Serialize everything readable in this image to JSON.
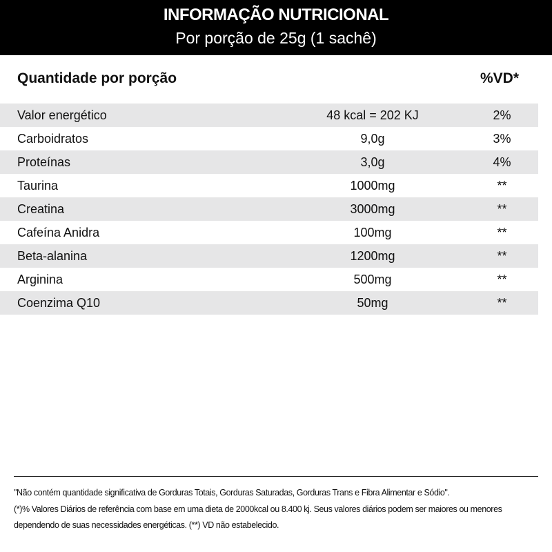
{
  "header": {
    "title": "INFORMAÇÃO NUTRICIONAL",
    "subtitle": "Por porção de 25g (1 sachê)"
  },
  "columns": {
    "quantity": "Quantidade por porção",
    "vd": "%VD*"
  },
  "rows": [
    {
      "name": "Valor energético",
      "value": "48 kcal = 202 KJ",
      "vd": "2%"
    },
    {
      "name": "Carboidratos",
      "value": "9,0g",
      "vd": "3%"
    },
    {
      "name": "Proteínas",
      "value": "3,0g",
      "vd": "4%"
    },
    {
      "name": "Taurina",
      "value": "1000mg",
      "vd": "**"
    },
    {
      "name": "Creatina",
      "value": "3000mg",
      "vd": "**"
    },
    {
      "name": "Cafeína Anidra",
      "value": "100mg",
      "vd": "**"
    },
    {
      "name": "Beta-alanina",
      "value": "1200mg",
      "vd": "**"
    },
    {
      "name": "Arginina",
      "value": "500mg",
      "vd": "**"
    },
    {
      "name": "Coenzima Q10",
      "value": "50mg",
      "vd": "**"
    }
  ],
  "footer": {
    "line1": "\"Não contém quantidade significativa de  Gorduras Totais, Gorduras Saturadas, Gorduras Trans e Fibra Alimentar e Sódio\".",
    "line2": "(*)% Valores Diários de referência com base em uma dieta de 2000kcal ou 8.400 kj. Seus valores diários podem ser maiores ou menores",
    "line3": " dependendo de suas necessidades energéticas. (**) VD não estabelecido."
  },
  "colors": {
    "header_bg": "#000000",
    "stripe": "#e6e6e7"
  }
}
